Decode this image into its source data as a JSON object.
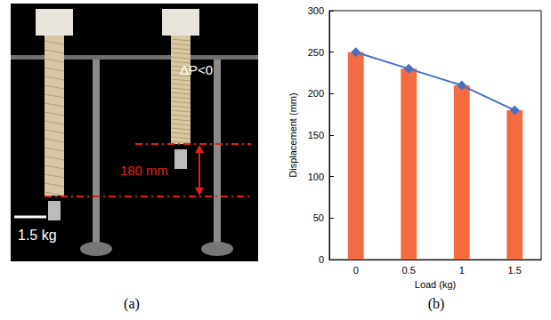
{
  "chart_data": {
    "type": "bar",
    "x_label": "Load (kg)",
    "y_label": "Displacement (mm)",
    "categories": [
      "0",
      "0.5",
      "1",
      "1.5"
    ],
    "series": [
      {
        "type": "bar",
        "color": "#f26b43",
        "values": [
          250,
          230,
          210,
          180
        ]
      },
      {
        "type": "line",
        "color": "#4a6fbf",
        "marker": "diamond",
        "line_style": "solid",
        "values": [
          250,
          230,
          210,
          180
        ]
      }
    ],
    "ylim": [
      0,
      300
    ],
    "yticks": [
      0,
      50,
      100,
      150,
      200,
      250,
      300
    ],
    "grid": false
  },
  "panel_labels": [
    "(a)",
    "(b)"
  ],
  "photo": {
    "pressure_label": "ΔP<0",
    "displacement_label": "180 mm",
    "scale_label": "1.5 kg"
  }
}
